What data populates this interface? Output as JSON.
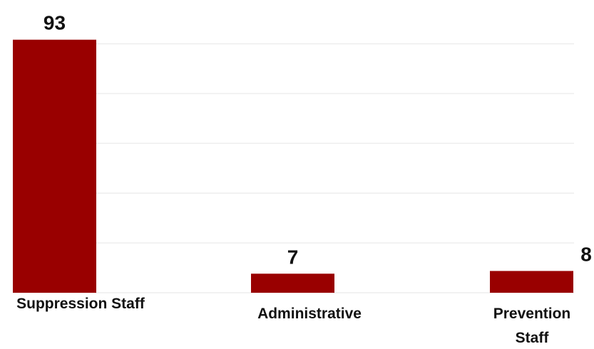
{
  "chart_data": {
    "type": "bar",
    "categories": [
      "Suppression Staff",
      "Administrative",
      "Prevention Staff"
    ],
    "category_lines": [
      [
        "Suppression Staff"
      ],
      [
        "Administrative"
      ],
      [
        "Prevention",
        "Staff"
      ]
    ],
    "values": [
      93,
      7,
      8
    ],
    "value_labels": [
      "93",
      "7",
      "8"
    ],
    "title": "",
    "xlabel": "",
    "ylabel": "",
    "ylim": [
      0,
      100
    ],
    "grid": true,
    "bar_color": "#990000",
    "grid_color": "#eeeeee"
  }
}
